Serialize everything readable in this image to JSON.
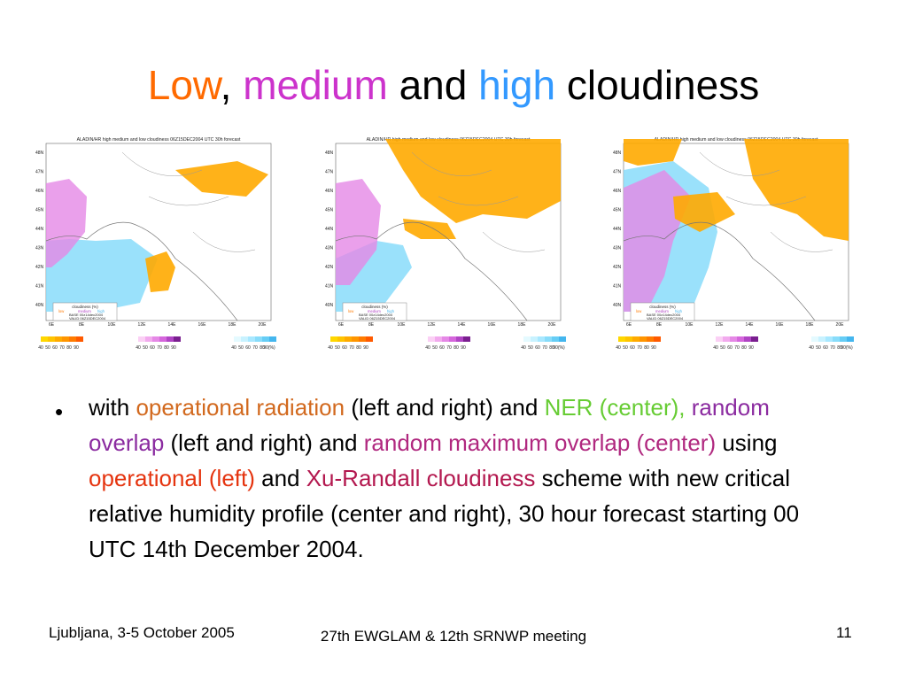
{
  "slide": {
    "title": [
      {
        "text": "Low",
        "color": "#ff6a00"
      },
      {
        "text": ", ",
        "color": "#000000"
      },
      {
        "text": "medium",
        "color": "#cc33cc"
      },
      {
        "text": " and ",
        "color": "#000000"
      },
      {
        "text": "high",
        "color": "#3399ff"
      },
      {
        "text": " cloudiness",
        "color": "#000000"
      }
    ],
    "bullet_symbol": "•",
    "bullet": [
      {
        "text": "with ",
        "color": "#000000"
      },
      {
        "text": "operational radiation",
        "color": "#d2691e"
      },
      {
        "text": " (left and right) and ",
        "color": "#000000"
      },
      {
        "text": "NER (center),",
        "color": "#66cc33"
      },
      {
        "text": " ",
        "color": "#000000"
      },
      {
        "text": "random overlap",
        "color": "#8b2ba0"
      },
      {
        "text": " (left and right) and ",
        "color": "#000000"
      },
      {
        "text": "random maximum overlap (center)",
        "color": "#b0287f"
      },
      {
        "text": " using ",
        "color": "#000000"
      },
      {
        "text": "operational (left)",
        "color": "#e5340f"
      },
      {
        "text": " and ",
        "color": "#000000"
      },
      {
        "text": "Xu-Randall cloudiness",
        "color": "#b3184f"
      },
      {
        "text": " scheme with new critical relative humidity profile (center and right), 30 hour forecast starting 00 UTC 14th December 2004.",
        "color": "#000000"
      }
    ],
    "footer": {
      "left": "Ljubljana, 3-5 October 2005",
      "center": "27th EWGLAM & 12th SRNWP meeting",
      "right": "11"
    }
  },
  "maps": [
    {
      "header": "ALADIN/HR  high  medium  and  low  cloudiness  06Z15DEC2004  UTC  30h  forecast",
      "lat_labels": [
        "48N",
        "47N",
        "46N",
        "45N",
        "44N",
        "43N",
        "42N",
        "41N",
        "40N"
      ],
      "lon_labels": [
        "6E",
        "8E",
        "10E",
        "12E",
        "14E",
        "16E",
        "18E",
        "20E"
      ],
      "legend": {
        "title": "cloudiness  (%)",
        "keys": [
          "low",
          "medium",
          "high"
        ],
        "base": "BASE  00z14dec2004",
        "valid": "VALID  06Z15DEC2004"
      }
    },
    {
      "header": "ALADIN/HR  high  medium  and  low  cloudiness  06Z15DEC2004  UTC  30h  forecast",
      "lat_labels": [
        "48N",
        "47N",
        "46N",
        "45N",
        "44N",
        "43N",
        "42N",
        "41N",
        "40N"
      ],
      "lon_labels": [
        "6E",
        "8E",
        "10E",
        "12E",
        "14E",
        "16E",
        "18E",
        "20E"
      ],
      "legend": {
        "title": "cloudiness  (%)",
        "keys": [
          "low",
          "medium",
          "high"
        ],
        "base": "BASE  00z14dec2004",
        "valid": "VALID  06Z15DEC2004"
      }
    },
    {
      "header": "ALADIN/HR  high  medium  and  low  cloudiness  06Z15DEC2004  UTC  30h  forecast",
      "lat_labels": [
        "48N",
        "47N",
        "46N",
        "45N",
        "44N",
        "43N",
        "42N",
        "41N",
        "40N"
      ],
      "lon_labels": [
        "6E",
        "8E",
        "10E",
        "12E",
        "14E",
        "16E",
        "18E",
        "20E"
      ],
      "legend": {
        "title": "cloudiness  (%)",
        "keys": [
          "low",
          "medium",
          "high"
        ],
        "base": "BASE  00z14dec2004",
        "valid": "VALID  06Z15DEC2004"
      }
    }
  ],
  "colorbar": {
    "values": [
      "40",
      "50",
      "60",
      "70",
      "80",
      "90"
    ],
    "high_last": "90(%)",
    "low_colors": [
      "#ffd700",
      "#ffc400",
      "#ffaa00",
      "#ff9500",
      "#ff7b00",
      "#ff5a00"
    ],
    "medium_colors": [
      "#fbd0f5",
      "#f2aaee",
      "#e588e6",
      "#d566dc",
      "#b044c4",
      "#7a1f8f"
    ],
    "high_colors": [
      "#e4faff",
      "#c8f2ff",
      "#a8e8ff",
      "#88dcfa",
      "#66cdf5",
      "#44b6ee"
    ]
  }
}
